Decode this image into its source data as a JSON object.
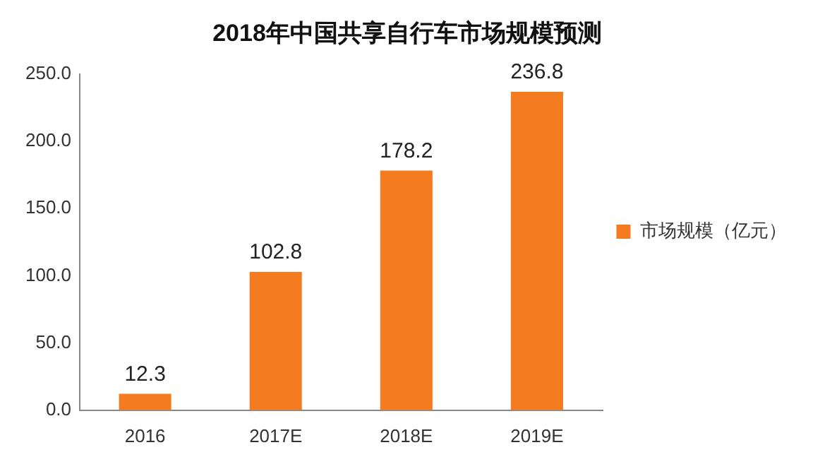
{
  "chart_data": {
    "type": "bar",
    "title": "2018年中国共享自行车市场规模预测",
    "categories": [
      "2016",
      "2017E",
      "2018E",
      "2019E"
    ],
    "series": [
      {
        "name": "市场规模（亿元）",
        "color": "#f47b20",
        "values": [
          12.3,
          102.8,
          178.2,
          236.8
        ]
      }
    ],
    "ylim": [
      0,
      250
    ],
    "yticks": [
      {
        "value": 0,
        "label": "0.0"
      },
      {
        "value": 50,
        "label": "50.0"
      },
      {
        "value": 100,
        "label": "100.0"
      },
      {
        "value": 150,
        "label": "150.0"
      },
      {
        "value": 200,
        "label": "200.0"
      },
      {
        "value": 250,
        "label": "250.0"
      }
    ],
    "grid": false,
    "legend": "right",
    "data_labels": true
  }
}
